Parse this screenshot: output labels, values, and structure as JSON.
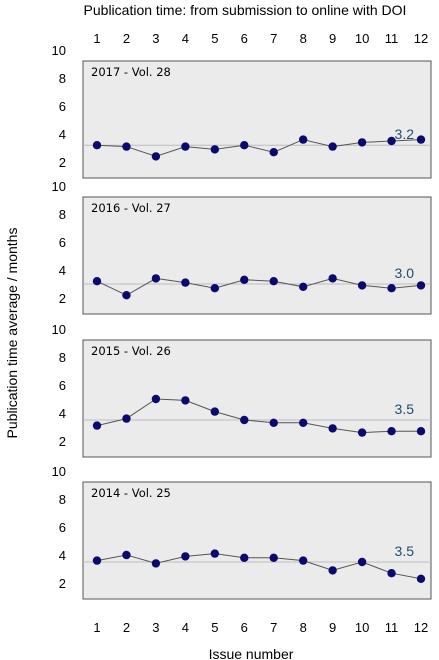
{
  "title": "Publication time: from submission to online with DOI",
  "xlabel": "Issue number",
  "ylabel": "Publication time average / months",
  "colors": {
    "marker": "#0a0a6e",
    "line": "#555555",
    "avg_line": "#bcbcbc",
    "avg_text": "#1f4e6e",
    "panel_bg": "#ebebeb",
    "panel_border": "#555555"
  },
  "chart_data": {
    "type": "line",
    "x": [
      1,
      2,
      3,
      4,
      5,
      6,
      7,
      8,
      9,
      10,
      11,
      12
    ],
    "xticks": [
      "1",
      "2",
      "3",
      "4",
      "5",
      "6",
      "7",
      "8",
      "9",
      "10",
      "11",
      "12"
    ],
    "yticks": [
      "10",
      "8",
      "6",
      "4",
      "2"
    ],
    "ylim": [
      1.2,
      10
    ],
    "panels": [
      {
        "label": "2017 - Vol. 28",
        "average": 3.2,
        "average_label": "3.2",
        "values": [
          3.2,
          3.1,
          2.4,
          3.1,
          2.9,
          3.2,
          2.7,
          3.6,
          3.1,
          3.4,
          3.5,
          3.6
        ]
      },
      {
        "label": "2016 - Vol. 27",
        "average": 3.0,
        "average_label": "3.0",
        "values": [
          3.2,
          2.2,
          3.4,
          3.1,
          2.7,
          3.3,
          3.2,
          2.8,
          3.4,
          2.9,
          2.7,
          2.9
        ]
      },
      {
        "label": "2015 - Vol. 26",
        "average": 3.5,
        "average_label": "3.5",
        "values": [
          3.1,
          3.6,
          5.0,
          4.9,
          4.1,
          3.5,
          3.3,
          3.3,
          2.9,
          2.6,
          2.7,
          2.7
        ]
      },
      {
        "label": "2014 - Vol. 25",
        "average": 3.5,
        "average_label": "3.5",
        "values": [
          3.6,
          4.0,
          3.4,
          3.9,
          4.1,
          3.8,
          3.8,
          3.6,
          2.9,
          3.5,
          2.7,
          2.3
        ]
      }
    ]
  }
}
